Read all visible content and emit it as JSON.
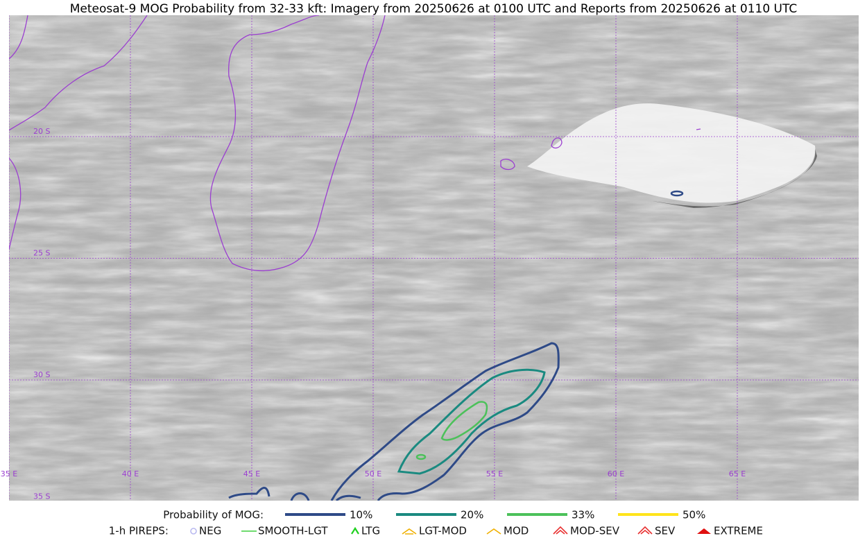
{
  "title": "Meteosat-9 MOG Probability from 32-33 kft: Imagery from 20250626 at 0100 UTC and Reports from 20250626 at 0110 UTC",
  "map": {
    "lat_labels": [
      "20 S",
      "25 S",
      "30 S",
      "35 S"
    ],
    "lon_labels": [
      "35 E",
      "40 E",
      "45 E",
      "50 E",
      "55 E",
      "60 E",
      "65 E"
    ]
  },
  "legend": {
    "probability": {
      "label": "Probability of MOG:",
      "entries": [
        {
          "name": "10%",
          "color": "#2e4a87"
        },
        {
          "name": "20%",
          "color": "#1a8a80"
        },
        {
          "name": "33%",
          "color": "#4cc15a"
        },
        {
          "name": "50%",
          "color": "#ffe41a"
        }
      ]
    },
    "pireps": {
      "label": "1-h PIREPS:",
      "entries": [
        {
          "name": "NEG",
          "color": "#b9b9f0"
        },
        {
          "name": "SMOOTH-LGT",
          "color": "#3ecf3e"
        },
        {
          "name": "LTG",
          "color": "#1ed01e"
        },
        {
          "name": "LGT-MOD",
          "color": "#f0b000"
        },
        {
          "name": "MOD",
          "color": "#f0b000"
        },
        {
          "name": "MOD-SEV",
          "color": "#e83030"
        },
        {
          "name": "SEV",
          "color": "#e83030"
        },
        {
          "name": "EXTREME",
          "color": "#e01010"
        }
      ]
    }
  }
}
